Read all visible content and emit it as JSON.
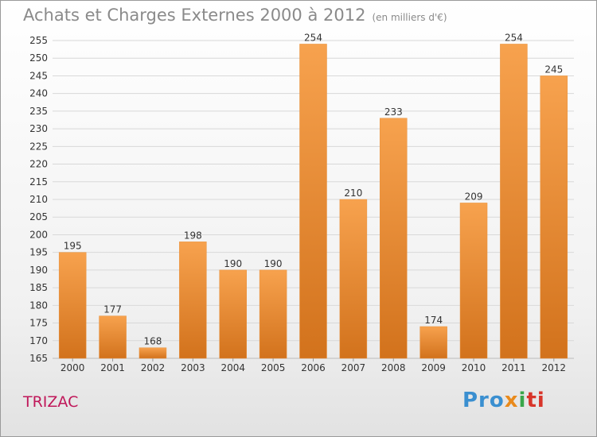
{
  "header": {
    "title": "Achats et Charges Externes 2000 à 2012",
    "subtitle": "(en milliers d'€)"
  },
  "place_name": "TRIZAC",
  "logo": {
    "text": "Proxiti",
    "parts": [
      "Pro",
      "x",
      "i",
      "ti"
    ]
  },
  "colors": {
    "bar_top": "#f7a24e",
    "bar_bottom": "#d2721c",
    "grid": "#d8d8d8",
    "axis_text": "#333333"
  },
  "chart_data": {
    "type": "bar",
    "title": "Achats et Charges Externes 2000 à 2012",
    "unit_label": "(en milliers d'€)",
    "categories": [
      "2000",
      "2001",
      "2002",
      "2003",
      "2004",
      "2005",
      "2006",
      "2007",
      "2008",
      "2009",
      "2010",
      "2011",
      "2012"
    ],
    "values": [
      195,
      177,
      168,
      198,
      190,
      190,
      254,
      210,
      233,
      174,
      209,
      254,
      245
    ],
    "ylim": [
      165,
      255
    ],
    "yticks": [
      165,
      170,
      175,
      180,
      185,
      190,
      195,
      200,
      205,
      210,
      215,
      220,
      225,
      230,
      235,
      240,
      245,
      250,
      255
    ],
    "grid": true,
    "xlabel": "",
    "ylabel": ""
  }
}
